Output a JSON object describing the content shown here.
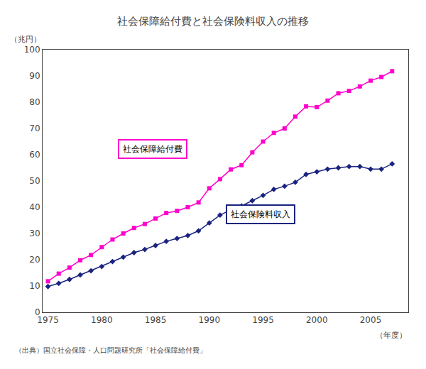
{
  "chart_data": {
    "type": "line",
    "title": "社会保障給付費と社会保険料収入の推移",
    "ylabel": "（兆円）",
    "xlabel": "（年度）",
    "source": "（出典）国立社会保障・人口問題研究所「社会保障給付費」",
    "x": [
      1975,
      1976,
      1977,
      1978,
      1979,
      1980,
      1981,
      1982,
      1983,
      1984,
      1985,
      1986,
      1987,
      1988,
      1989,
      1990,
      1991,
      1992,
      1993,
      1994,
      1995,
      1996,
      1997,
      1998,
      1999,
      2000,
      2001,
      2002,
      2003,
      2004,
      2005,
      2006,
      2007
    ],
    "series": [
      {
        "name": "社会保障給付費",
        "color": "#FF00CC",
        "marker": "square",
        "values": [
          11.8,
          14.7,
          17.0,
          19.8,
          21.8,
          24.8,
          27.7,
          30.0,
          32.1,
          33.6,
          35.7,
          37.8,
          38.6,
          40.0,
          41.8,
          47.2,
          50.7,
          54.4,
          56.0,
          60.9,
          65.0,
          68.3,
          70.0,
          74.5,
          78.4,
          78.1,
          80.6,
          83.4,
          84.3,
          86.0,
          88.2,
          89.6,
          91.8
        ]
      },
      {
        "name": "社会保険料収入",
        "color": "#1A237E",
        "marker": "diamond",
        "values": [
          9.8,
          11.0,
          12.5,
          14.2,
          15.8,
          17.4,
          19.3,
          21.0,
          22.7,
          23.9,
          25.4,
          27.0,
          28.1,
          29.2,
          31.0,
          34.0,
          37.0,
          39.0,
          40.5,
          42.5,
          44.5,
          46.8,
          48.0,
          49.5,
          52.5,
          53.5,
          54.5,
          55.0,
          55.5,
          55.5,
          54.5,
          54.5,
          56.5
        ]
      }
    ],
    "xlim": [
      1974.5,
      2008.5
    ],
    "xticks": [
      1975,
      1980,
      1985,
      1990,
      1995,
      2000,
      2005
    ],
    "ylim": [
      0,
      100
    ],
    "yticks": [
      0,
      10,
      20,
      30,
      40,
      50,
      60,
      70,
      80,
      90,
      100
    ],
    "grid": false
  }
}
